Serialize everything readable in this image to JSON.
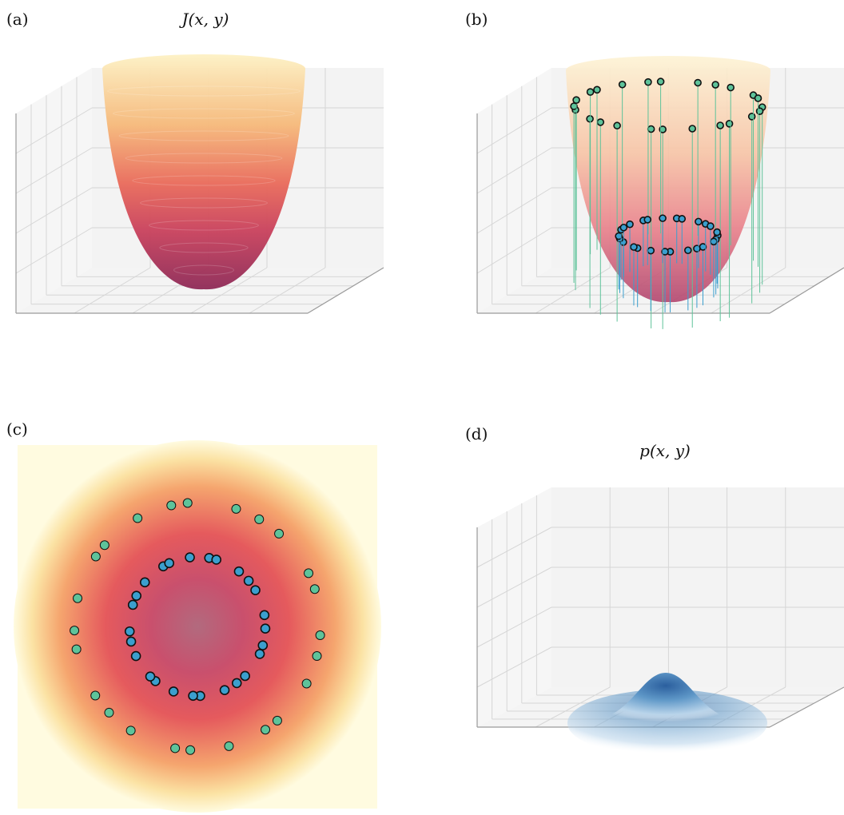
{
  "panels": [
    {
      "label": "(a)",
      "title": "J(x, y)"
    },
    {
      "label": "(b)",
      "title": ""
    },
    {
      "label": "(c)",
      "title": ""
    },
    {
      "label": "(d)",
      "title": "p(x, y)"
    }
  ],
  "colors": {
    "outer_points": "#5ec39a",
    "inner_points": "#3b9fce",
    "point_edge": "#111111",
    "surface_low": "#9b2f5c",
    "surface_mid": "#e35d5a",
    "surface_high": "#fbe4a8",
    "density": "#2f67a8",
    "grid": "#d6d6d6",
    "axis": "#9a9a9a"
  },
  "chart_data": [
    {
      "type": "surface3d",
      "panel": "(a)",
      "title": "J(x, y)",
      "function": "paraboloid",
      "grid": true
    },
    {
      "type": "surface3d+scatter",
      "panel": "(b)",
      "title": "",
      "function": "paraboloid",
      "series": [
        {
          "group": "outer",
          "count": 24,
          "radius": 2.0
        },
        {
          "group": "inner",
          "count": 26,
          "radius": 1.0
        }
      ],
      "stems": true,
      "grid": true
    },
    {
      "type": "heatmap+scatter",
      "panel": "(c)",
      "title": "",
      "series": [
        {
          "group": "outer",
          "count": 24,
          "radius": 2.0
        },
        {
          "group": "inner",
          "count": 26,
          "radius": 1.0
        }
      ]
    },
    {
      "type": "surface3d",
      "panel": "(d)",
      "title": "p(x, y)",
      "function": "gaussian",
      "grid": true
    }
  ]
}
